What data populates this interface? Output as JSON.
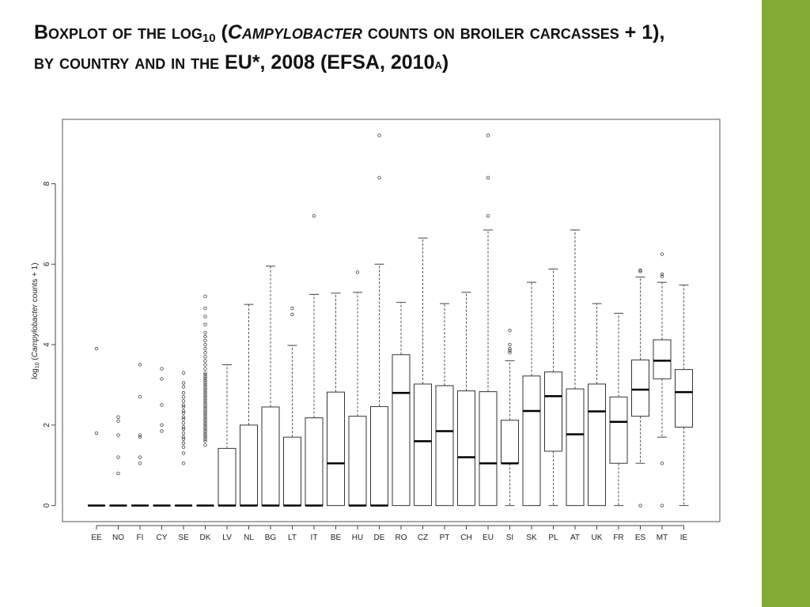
{
  "slide": {
    "accent_color": "#82aa33",
    "title_parts": [
      "Boxplot of the log",
      "10",
      " (",
      "Campylobacter",
      " counts on broiler carcasses + 1),",
      "by country and in the EU*, 2008 (EFSA, 2010",
      "a",
      ")"
    ]
  },
  "chart_data": {
    "type": "boxplot",
    "ylabel": "log10 (Campylobacter counts + 1)",
    "ylabel_parts": [
      "log",
      "10",
      " (",
      "Campylobacter",
      " counts + 1)"
    ],
    "ylim": [
      -0.4,
      9.6
    ],
    "yticks": [
      0,
      2,
      4,
      6,
      8
    ],
    "grid": false,
    "categories": [
      "EE",
      "NO",
      "FI",
      "CY",
      "SE",
      "DK",
      "LV",
      "NL",
      "BG",
      "LT",
      "IT",
      "BE",
      "HU",
      "DE",
      "RO",
      "CZ",
      "PT",
      "CH",
      "EU",
      "SI",
      "SK",
      "PL",
      "AT",
      "UK",
      "FR",
      "ES",
      "MT",
      "IE"
    ],
    "boxes": [
      {
        "q1": 0,
        "median": 0,
        "q3": 0,
        "whisker_low": 0,
        "whisker_high": 0,
        "outliers": [
          3.9,
          1.8
        ]
      },
      {
        "q1": 0,
        "median": 0,
        "q3": 0,
        "whisker_low": 0,
        "whisker_high": 0,
        "outliers": [
          2.2,
          2.1,
          1.75,
          1.2,
          0.8
        ]
      },
      {
        "q1": 0,
        "median": 0,
        "q3": 0,
        "whisker_low": 0,
        "whisker_high": 0,
        "outliers": [
          3.5,
          2.7,
          1.75,
          1.7,
          1.2,
          1.05
        ]
      },
      {
        "q1": 0,
        "median": 0,
        "q3": 0,
        "whisker_low": 0,
        "whisker_high": 0,
        "outliers": [
          3.4,
          3.15,
          2.5,
          2.0,
          1.85
        ]
      },
      {
        "q1": 0,
        "median": 0,
        "q3": 0,
        "whisker_low": 0,
        "whisker_high": 0,
        "outliers": [
          3.3,
          3.05,
          2.95,
          2.8,
          2.7,
          2.6,
          2.5,
          2.45,
          2.35,
          2.3,
          2.2,
          2.15,
          2.05,
          1.95,
          1.9,
          1.8,
          1.7,
          1.65,
          1.55,
          1.45,
          1.3,
          1.05
        ]
      },
      {
        "q1": 0,
        "median": 0,
        "q3": 0,
        "whisker_low": 0,
        "whisker_high": 0,
        "outliers": [
          5.2,
          4.9,
          4.7,
          4.5,
          4.3,
          4.2,
          4.1,
          4.0,
          3.9,
          3.8,
          3.7,
          3.6,
          3.5,
          3.4,
          3.3,
          3.25,
          3.2,
          3.15,
          3.1,
          3.05,
          3.0,
          2.95,
          2.9,
          2.85,
          2.8,
          2.75,
          2.7,
          2.65,
          2.6,
          2.55,
          2.5,
          2.45,
          2.4,
          2.35,
          2.3,
          2.25,
          2.2,
          2.15,
          2.1,
          2.05,
          2.0,
          1.95,
          1.9,
          1.85,
          1.8,
          1.75,
          1.7,
          1.65,
          1.6,
          1.5
        ]
      },
      {
        "q1": 0,
        "median": 0,
        "q3": 1.42,
        "whisker_low": 0,
        "whisker_high": 3.5,
        "outliers": []
      },
      {
        "q1": 0,
        "median": 0,
        "q3": 2.0,
        "whisker_low": 0,
        "whisker_high": 5.0,
        "outliers": []
      },
      {
        "q1": 0,
        "median": 0,
        "q3": 2.45,
        "whisker_low": 0,
        "whisker_high": 5.95,
        "outliers": []
      },
      {
        "q1": 0,
        "median": 0,
        "q3": 1.7,
        "whisker_low": 0,
        "whisker_high": 3.98,
        "outliers": [
          4.9,
          4.75
        ]
      },
      {
        "q1": 0,
        "median": 0,
        "q3": 2.18,
        "whisker_low": 0,
        "whisker_high": 5.25,
        "outliers": [
          7.2
        ]
      },
      {
        "q1": 0,
        "median": 1.05,
        "q3": 2.82,
        "whisker_low": 0,
        "whisker_high": 5.28,
        "outliers": []
      },
      {
        "q1": 0,
        "median": 0,
        "q3": 2.22,
        "whisker_low": 0,
        "whisker_high": 5.3,
        "outliers": [
          5.8
        ]
      },
      {
        "q1": 0,
        "median": 0,
        "q3": 2.46,
        "whisker_low": 0,
        "whisker_high": 6.0,
        "outliers": [
          8.15,
          9.2
        ]
      },
      {
        "q1": 0,
        "median": 2.8,
        "q3": 3.75,
        "whisker_low": 0,
        "whisker_high": 5.05,
        "outliers": []
      },
      {
        "q1": 0,
        "median": 1.6,
        "q3": 3.02,
        "whisker_low": 0,
        "whisker_high": 6.65,
        "outliers": []
      },
      {
        "q1": 0,
        "median": 1.85,
        "q3": 2.98,
        "whisker_low": 0,
        "whisker_high": 5.02,
        "outliers": []
      },
      {
        "q1": 0,
        "median": 1.2,
        "q3": 2.85,
        "whisker_low": 0,
        "whisker_high": 5.3,
        "outliers": []
      },
      {
        "q1": 0,
        "median": 1.05,
        "q3": 2.83,
        "whisker_low": 0,
        "whisker_high": 6.85,
        "outliers": [
          7.2,
          8.15,
          9.2
        ]
      },
      {
        "q1": 1.05,
        "median": 1.05,
        "q3": 2.12,
        "whisker_low": 0,
        "whisker_high": 3.6,
        "outliers": [
          3.8,
          3.85,
          3.9,
          4.0,
          4.35
        ]
      },
      {
        "q1": 0,
        "median": 2.35,
        "q3": 3.22,
        "whisker_low": 0,
        "whisker_high": 5.55,
        "outliers": []
      },
      {
        "q1": 1.35,
        "median": 2.72,
        "q3": 3.32,
        "whisker_low": 0,
        "whisker_high": 5.88,
        "outliers": []
      },
      {
        "q1": 0,
        "median": 1.77,
        "q3": 2.9,
        "whisker_low": 0,
        "whisker_high": 6.85,
        "outliers": []
      },
      {
        "q1": 0,
        "median": 2.34,
        "q3": 3.02,
        "whisker_low": 0,
        "whisker_high": 5.02,
        "outliers": []
      },
      {
        "q1": 1.05,
        "median": 2.08,
        "q3": 2.7,
        "whisker_low": 0,
        "whisker_high": 4.78,
        "outliers": []
      },
      {
        "q1": 2.22,
        "median": 2.88,
        "q3": 3.62,
        "whisker_low": 1.05,
        "whisker_high": 5.68,
        "outliers": [
          5.85,
          5.82,
          0
        ]
      },
      {
        "q1": 3.15,
        "median": 3.6,
        "q3": 4.12,
        "whisker_low": 1.7,
        "whisker_high": 5.55,
        "outliers": [
          5.7,
          5.75,
          6.25,
          1.05,
          0
        ]
      },
      {
        "q1": 1.95,
        "median": 2.82,
        "q3": 3.38,
        "whisker_low": 0,
        "whisker_high": 5.48,
        "outliers": []
      }
    ]
  }
}
